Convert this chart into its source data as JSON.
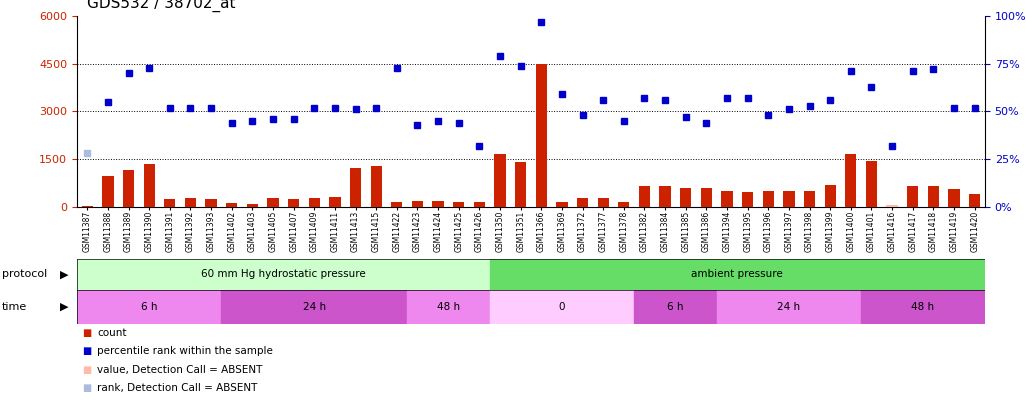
{
  "title": "GDS532 / 38702_at",
  "samples": [
    "GSM11387",
    "GSM11388",
    "GSM11389",
    "GSM11390",
    "GSM11391",
    "GSM11392",
    "GSM11393",
    "GSM11402",
    "GSM11403",
    "GSM11405",
    "GSM11407",
    "GSM11409",
    "GSM11411",
    "GSM11413",
    "GSM11415",
    "GSM11422",
    "GSM11423",
    "GSM11424",
    "GSM11425",
    "GSM11426",
    "GSM11350",
    "GSM11351",
    "GSM11366",
    "GSM11369",
    "GSM11372",
    "GSM11377",
    "GSM11378",
    "GSM11382",
    "GSM11384",
    "GSM11385",
    "GSM11386",
    "GSM11394",
    "GSM11395",
    "GSM11396",
    "GSM11397",
    "GSM11398",
    "GSM11399",
    "GSM11400",
    "GSM11401",
    "GSM11416",
    "GSM11417",
    "GSM11418",
    "GSM11419",
    "GSM11420"
  ],
  "counts": [
    10,
    950,
    1150,
    1350,
    230,
    280,
    250,
    120,
    80,
    280,
    230,
    280,
    300,
    1220,
    1270,
    130,
    160,
    160,
    140,
    130,
    1650,
    1400,
    4500,
    130,
    260,
    280,
    130,
    650,
    650,
    570,
    570,
    480,
    460,
    490,
    490,
    490,
    680,
    1650,
    1450,
    50,
    640,
    640,
    540,
    410
  ],
  "ranks": [
    28,
    55,
    70,
    73,
    52,
    52,
    52,
    44,
    45,
    46,
    46,
    52,
    52,
    51,
    52,
    73,
    43,
    45,
    44,
    32,
    79,
    74,
    97,
    59,
    48,
    56,
    45,
    57,
    56,
    47,
    44,
    57,
    57,
    48,
    51,
    53,
    56,
    71,
    63,
    32,
    71,
    72,
    52,
    52
  ],
  "absent_count_idx": [],
  "absent_rank_idx": [
    0
  ],
  "absent_bar_idx": [
    39
  ],
  "protocol_groups": [
    {
      "label": "60 mm Hg hydrostatic pressure",
      "start": 0,
      "end": 20,
      "color": "#ccffcc"
    },
    {
      "label": "ambient pressure",
      "start": 20,
      "end": 44,
      "color": "#66dd66"
    }
  ],
  "time_groups": [
    {
      "label": "6 h",
      "start": 0,
      "end": 7,
      "color": "#ee88ee"
    },
    {
      "label": "24 h",
      "start": 7,
      "end": 16,
      "color": "#cc55cc"
    },
    {
      "label": "48 h",
      "start": 16,
      "end": 20,
      "color": "#ee88ee"
    },
    {
      "label": "0",
      "start": 20,
      "end": 27,
      "color": "#ffccff"
    },
    {
      "label": "6 h",
      "start": 27,
      "end": 31,
      "color": "#cc55cc"
    },
    {
      "label": "24 h",
      "start": 31,
      "end": 38,
      "color": "#ee88ee"
    },
    {
      "label": "48 h",
      "start": 38,
      "end": 44,
      "color": "#cc55cc"
    }
  ],
  "left_ylim": [
    0,
    6000
  ],
  "left_yticks": [
    0,
    1500,
    3000,
    4500,
    6000
  ],
  "right_ylim": [
    0,
    100
  ],
  "right_yticks": [
    0,
    25,
    50,
    75,
    100
  ],
  "bar_color": "#cc2200",
  "dot_color": "#0000cc",
  "absent_bar_color": "#ffbbaa",
  "absent_dot_color": "#aabbdd",
  "bar_width": 0.55,
  "left_color": "#cc2200",
  "right_color": "#0000cc"
}
